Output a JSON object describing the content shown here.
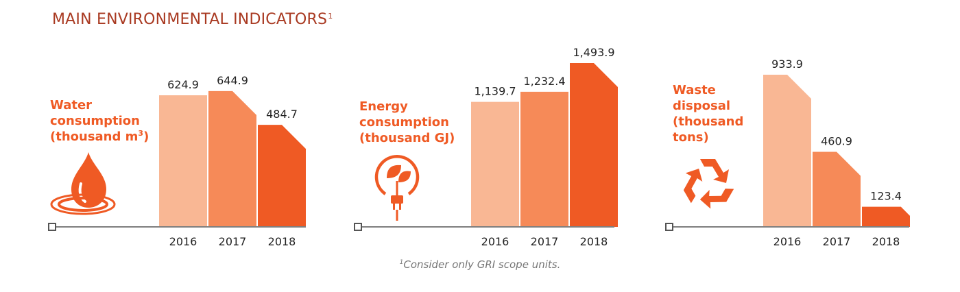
{
  "title": "MAIN ENVIRONMENTAL INDICATORS",
  "title_sup": "1",
  "footnote": {
    "sup": "1",
    "text": "Consider only GRI scope units."
  },
  "colors": {
    "bar_2016": "#f9b794",
    "bar_2017": "#f68a58",
    "bar_2018": "#ef5a24",
    "accent": "#ef5a24",
    "title": "#a93a22",
    "axis": "#7f7f7f"
  },
  "icons": [
    "water-drop-icon",
    "eco-energy-plug-icon",
    "recycle-icon"
  ],
  "chart_data": [
    {
      "type": "bar",
      "label_lines": [
        "Water",
        "consumption",
        "(thousand m"
      ],
      "label_sup": "3",
      "label_tail": ")",
      "categories": [
        "2016",
        "2017",
        "2018"
      ],
      "values": [
        624.9,
        644.9,
        484.7
      ],
      "value_labels": [
        "624.9",
        "644.9",
        "484.7"
      ]
    },
    {
      "type": "bar",
      "label_lines": [
        "Energy",
        "consumption",
        "(thousand  GJ)"
      ],
      "categories": [
        "2016",
        "2017",
        "2018"
      ],
      "values": [
        1139.7,
        1232.4,
        1493.9
      ],
      "value_labels": [
        "1,139.7",
        "1,232.4",
        "1,493.9"
      ]
    },
    {
      "type": "bar",
      "label_lines": [
        "Waste",
        "disposal",
        "(thousand",
        "tons)"
      ],
      "categories": [
        "2016",
        "2017",
        "2018"
      ],
      "values": [
        933.9,
        460.9,
        123.4
      ],
      "value_labels": [
        "933.9",
        "460.9",
        "123.4"
      ]
    }
  ]
}
